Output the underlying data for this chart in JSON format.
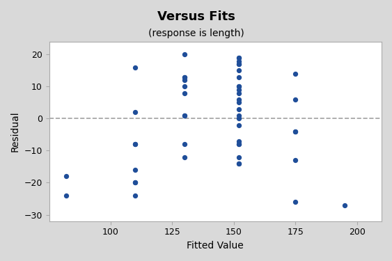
{
  "title": "Versus Fits",
  "subtitle": "(response is length)",
  "xlabel": "Fitted Value",
  "ylabel": "Residual",
  "xlim": [
    75,
    210
  ],
  "ylim": [
    -32,
    24
  ],
  "xticks": [
    100,
    125,
    150,
    175,
    200
  ],
  "yticks": [
    -30,
    -20,
    -10,
    0,
    10,
    20
  ],
  "bg_outer": "#d9d9d9",
  "bg_inner": "#ffffff",
  "point_color": "#1f4e99",
  "point_size": 18,
  "hline_y": 0,
  "hline_color": "#a0a0a0",
  "hline_style": "--",
  "points_x": [
    82,
    82,
    110,
    110,
    110,
    110,
    110,
    110,
    110,
    110,
    130,
    130,
    130,
    130,
    130,
    130,
    130,
    130,
    130,
    130,
    152,
    152,
    152,
    152,
    152,
    152,
    152,
    152,
    152,
    152,
    152,
    152,
    152,
    152,
    152,
    152,
    152,
    152,
    152,
    152,
    152,
    152,
    152,
    175,
    175,
    175,
    175,
    175,
    175,
    195
  ],
  "points_y": [
    -18,
    -24,
    16,
    2,
    -8,
    -16,
    -20,
    -24,
    -8,
    -20,
    20,
    13,
    13,
    12,
    10,
    8,
    1,
    1,
    -8,
    -12,
    -14,
    19,
    19,
    18,
    17,
    17,
    15,
    13,
    10,
    10,
    9,
    8,
    6,
    5,
    3,
    1,
    0,
    -2,
    -7,
    -8,
    -8,
    -12,
    -14,
    14,
    6,
    -4,
    -4,
    -13,
    -26,
    -27
  ]
}
